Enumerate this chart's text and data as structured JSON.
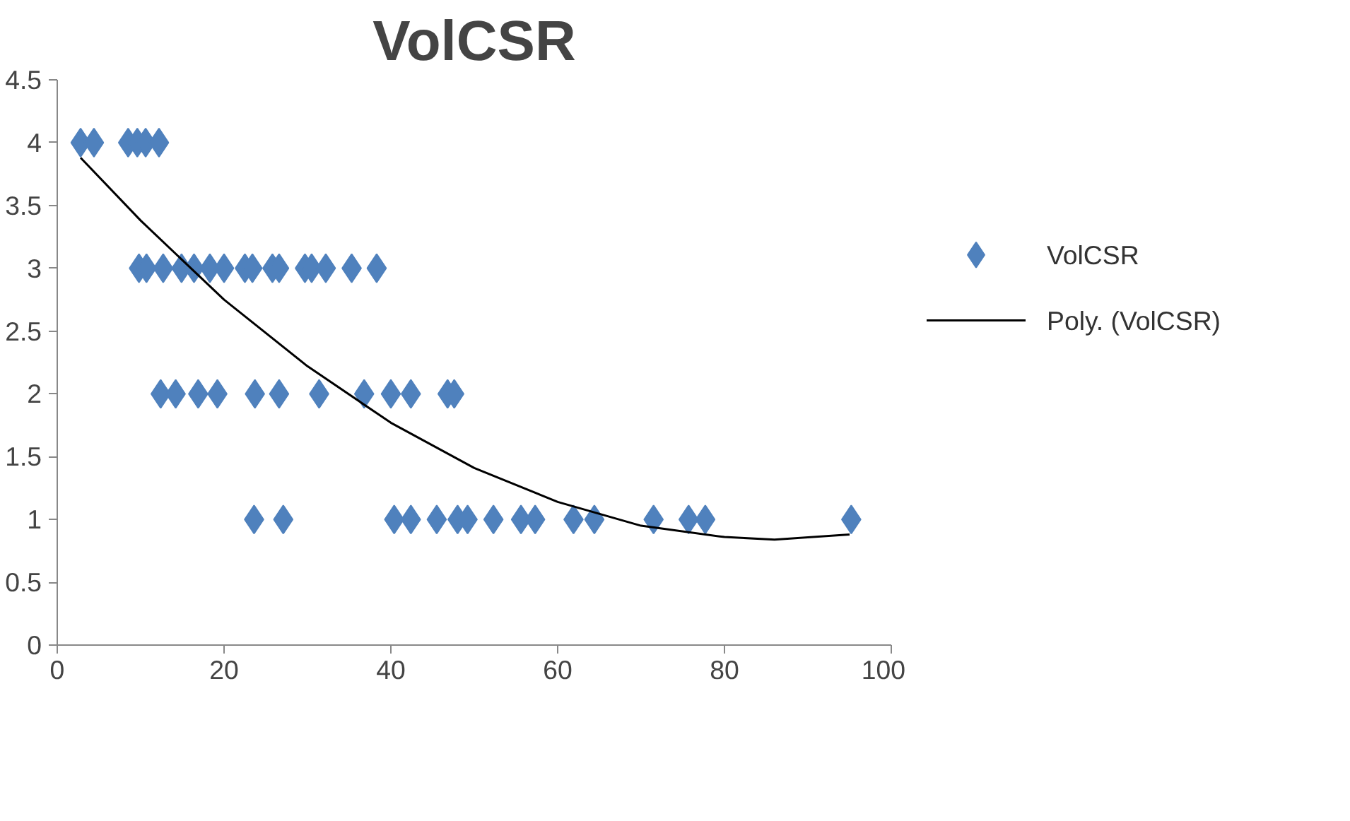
{
  "chart_data": {
    "type": "scatter",
    "title": "VolCSR",
    "xlim": [
      0,
      100
    ],
    "xticks": [
      0,
      20,
      40,
      60,
      80,
      100
    ],
    "ylim": [
      0,
      4.5
    ],
    "yticks": [
      0,
      0.5,
      1,
      1.5,
      2,
      2.5,
      3,
      3.5,
      4,
      4.5
    ],
    "grid": false,
    "legend": "right",
    "marker": "diamond",
    "series": [
      {
        "name": "VolCSR",
        "color": "#4f81bd",
        "x": [
          2.8,
          4.4,
          8.5,
          9.6,
          10.6,
          12.2,
          9.8,
          10.7,
          12.7,
          14.9,
          16.4,
          18.3,
          20,
          22.5,
          23.4,
          25.8,
          26.6,
          29.7,
          30.5,
          32.2,
          35.3,
          38.3,
          12.4,
          14.2,
          16.9,
          19.2,
          23.7,
          26.6,
          31.4,
          36.8,
          40,
          42.4,
          46.8,
          47.6,
          23.6,
          27.1,
          40.4,
          42.4,
          45.5,
          48,
          49.2,
          52.3,
          55.6,
          57.3,
          61.9,
          64.4,
          71.5,
          75.7,
          77.7,
          95.2
        ],
        "values": [
          4,
          4,
          4,
          4,
          4,
          4,
          3,
          3,
          3,
          3,
          3,
          3,
          3,
          3,
          3,
          3,
          3,
          3,
          3,
          3,
          3,
          3,
          2,
          2,
          2,
          2,
          2,
          2,
          2,
          2,
          2,
          2,
          2,
          2,
          1,
          1,
          1,
          1,
          1,
          1,
          1,
          1,
          1,
          1,
          1,
          1,
          1,
          1,
          1,
          1
        ]
      },
      {
        "name": "Poly. (VolCSR)",
        "type": "line",
        "color": "#000000",
        "marker": "none",
        "x": [
          2.8,
          10,
          20,
          30,
          40,
          50,
          60,
          70,
          80,
          86,
          95
        ],
        "values": [
          3.88,
          3.38,
          2.75,
          2.22,
          1.77,
          1.41,
          1.14,
          0.95,
          0.86,
          0.84,
          0.88
        ]
      }
    ]
  }
}
